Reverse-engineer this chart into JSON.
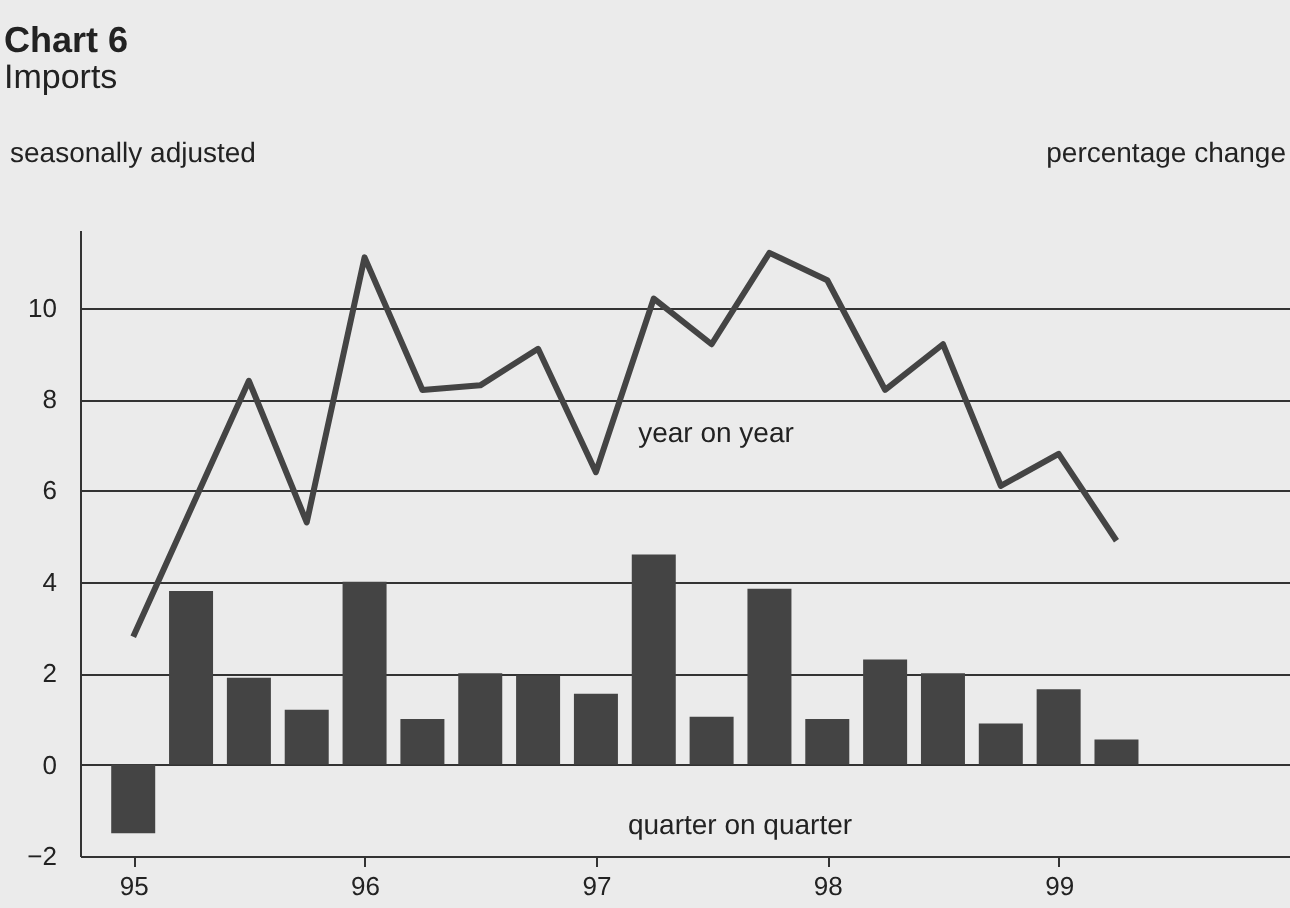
{
  "chart_data": {
    "type": "bar",
    "title": "Chart 6",
    "subtitle": "Imports",
    "ylabel": "percentage change",
    "annotations": [
      "seasonally adjusted",
      "year on year",
      "quarter on quarter"
    ],
    "x": [
      95,
      95.25,
      95.5,
      95.75,
      96,
      96.25,
      96.5,
      96.75,
      97,
      97.25,
      97.5,
      97.75,
      98,
      98.25,
      98.5,
      98.75,
      99,
      99.25
    ],
    "series": [
      {
        "color": "#444444",
        "values": [
          -1.5,
          3.8,
          1.9,
          1.2,
          4.0,
          1.0,
          2.0,
          1.95,
          1.55,
          4.6,
          1.05,
          3.85,
          1.0,
          2.3,
          2.0,
          0.9,
          1.65,
          0.55
        ]
      },
      {
        "type": "line",
        "color": "#444444",
        "values": [
          2.8,
          5.6,
          8.4,
          5.3,
          11.1,
          8.2,
          8.3,
          9.1,
          6.4,
          10.2,
          9.2,
          11.2,
          10.6,
          8.2,
          9.2,
          6.1,
          6.8,
          4.9
        ]
      }
    ],
    "xlim": [
      94.77,
      100
    ],
    "xticks": [
      95,
      96,
      97,
      98,
      99
    ],
    "ylim": [
      -2,
      11.7
    ],
    "yticks": [
      -2,
      0,
      2,
      4,
      6,
      8,
      10
    ],
    "grid": "y"
  }
}
